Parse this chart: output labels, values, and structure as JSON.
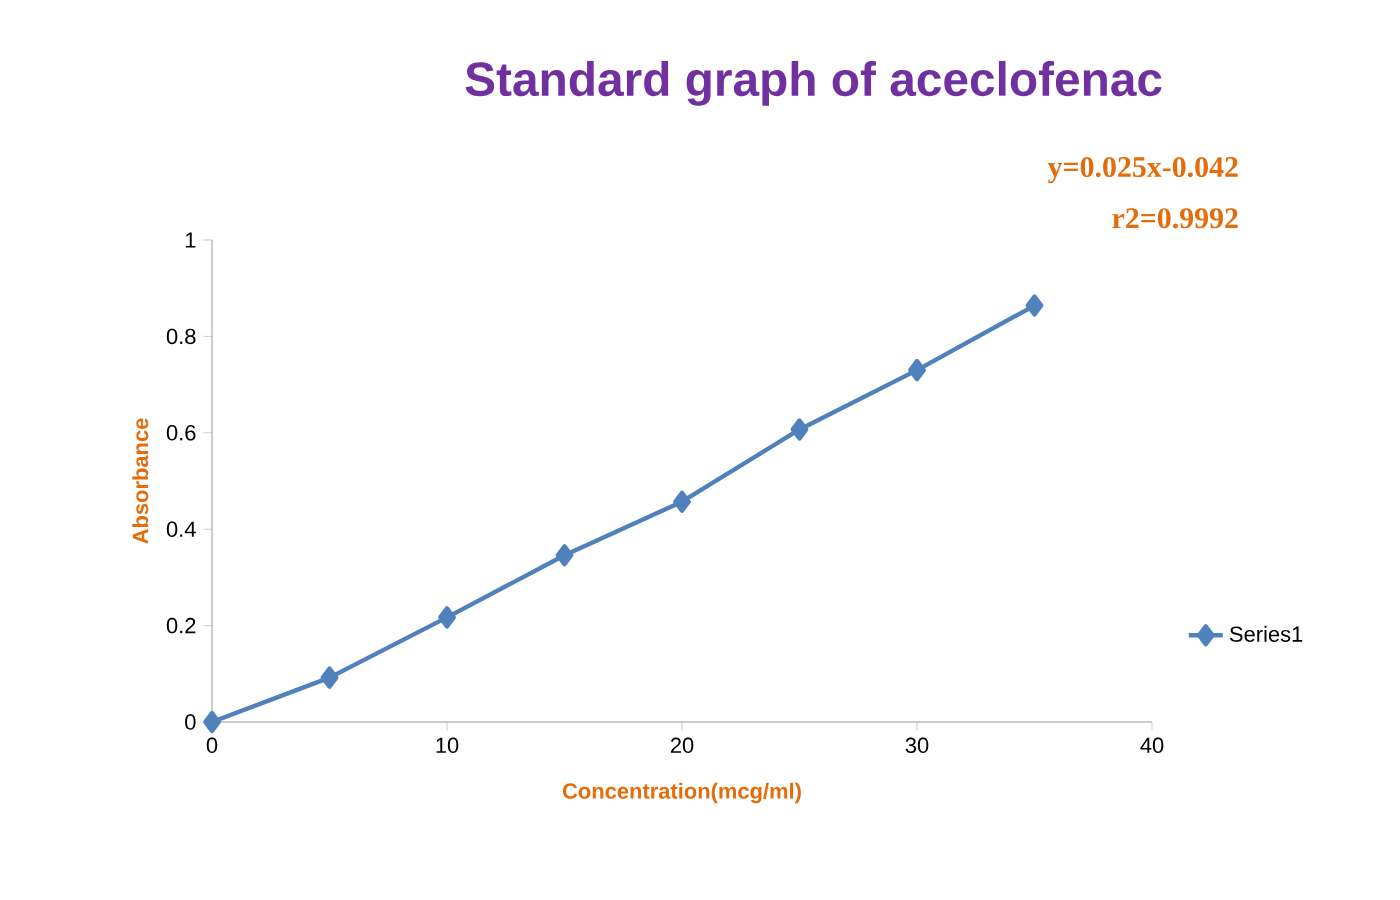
{
  "chart_data": {
    "type": "line",
    "title": "Standard graph of aceclofenac",
    "xlabel": "Concentration(mcg/ml)",
    "ylabel": "Absorbance",
    "annotations": [
      "y=0.025x-0.042",
      "r2=0.9992"
    ],
    "x": [
      0,
      5,
      10,
      15,
      20,
      25,
      30,
      35
    ],
    "series": [
      {
        "name": "Series1",
        "color": "#4f81bd",
        "values": [
          0,
          0.092,
          0.217,
          0.346,
          0.457,
          0.607,
          0.73,
          0.864
        ]
      }
    ],
    "xlim": [
      0,
      40
    ],
    "ylim": [
      0,
      1
    ],
    "xticks": [
      0,
      10,
      20,
      30,
      40
    ],
    "yticks": [
      0,
      0.2,
      0.4,
      0.6,
      0.8,
      1
    ],
    "legend": "right",
    "marker": "diamond",
    "line_style": "solid"
  }
}
